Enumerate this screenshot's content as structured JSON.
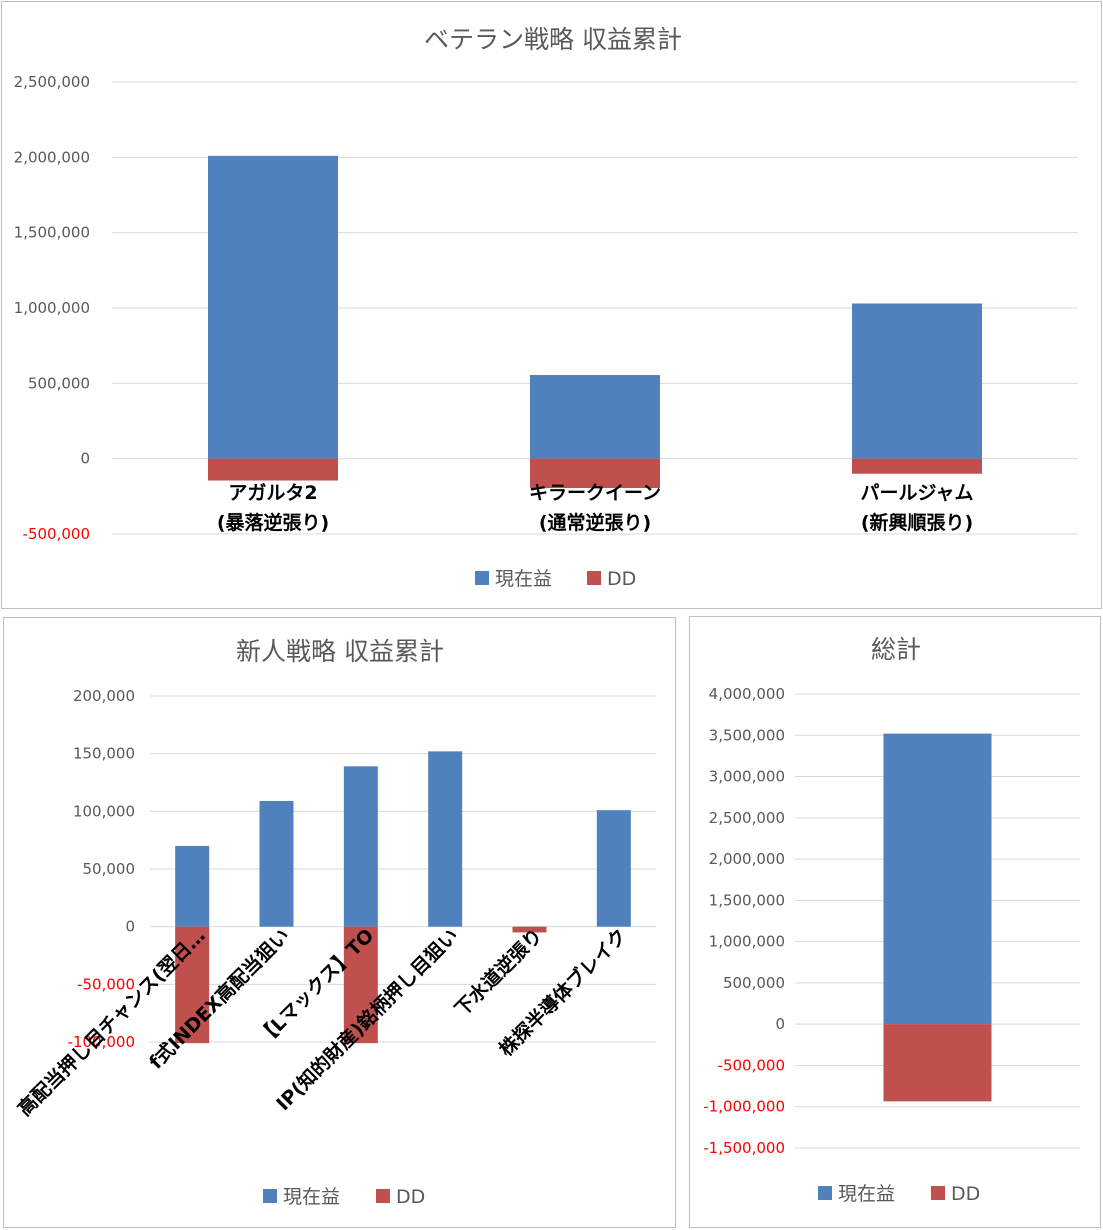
{
  "colors": {
    "gain": "#4f81bd",
    "dd": "#c0504d",
    "tick_positive": "#595959",
    "tick_negative": "#ff0000",
    "grid": "#d9d9d9"
  },
  "legend": {
    "gain": "現在益",
    "dd": "DD"
  },
  "chart_data": [
    {
      "type": "bar",
      "title": "ベテラン戦略 収益累計",
      "categories": [
        [
          "アガルタ2",
          "(暴落逆張り)"
        ],
        [
          "キラークイーン",
          "(通常逆張り)"
        ],
        [
          "パールジャム",
          "(新興順張り)"
        ]
      ],
      "ylim": [
        -500000,
        2500000
      ],
      "yticks": [
        -500000,
        0,
        500000,
        1000000,
        1500000,
        2000000,
        2500000
      ],
      "ytick_labels": [
        "-500,000",
        "0",
        "500,000",
        "1,000,000",
        "1,500,000",
        "2,000,000",
        "2,500,000"
      ],
      "series": [
        {
          "name": "現在益",
          "values": [
            2010000,
            555000,
            1030000
          ]
        },
        {
          "name": "DD",
          "values": [
            -145000,
            -195000,
            -100000
          ]
        }
      ],
      "grid": true,
      "legend_position": "bottom",
      "stacked": true
    },
    {
      "type": "bar",
      "title": "新人戦略 収益累計",
      "categories": [
        "高配当押し目チャンス(翌日…",
        "f式INDEX高配当狙い",
        "【Lマックス】TO",
        "IP(知的財産)銘柄押し目狙い",
        "下水道逆張り",
        "株探半導体ブレイク"
      ],
      "ylim": [
        -100000,
        200000
      ],
      "yticks": [
        -100000,
        -50000,
        0,
        50000,
        100000,
        150000,
        200000
      ],
      "ytick_labels": [
        "-100,000",
        "-50,000",
        "0",
        "50,000",
        "100,000",
        "150,000",
        "200,000"
      ],
      "series": [
        {
          "name": "現在益",
          "values": [
            70000,
            109000,
            139000,
            152000,
            0,
            101000
          ]
        },
        {
          "name": "DD",
          "values": [
            -101000,
            0,
            -101000,
            0,
            -5000,
            0
          ]
        }
      ],
      "grid": true,
      "legend_position": "bottom",
      "stacked": true
    },
    {
      "type": "bar",
      "title": "総計",
      "categories": [
        ""
      ],
      "ylim": [
        -1500000,
        4000000
      ],
      "yticks": [
        -1500000,
        -1000000,
        -500000,
        0,
        500000,
        1000000,
        1500000,
        2000000,
        2500000,
        3000000,
        3500000,
        4000000
      ],
      "ytick_labels": [
        "-1,500,000",
        "-1,000,000",
        "-500,000",
        "0",
        "500,000",
        "1,000,000",
        "1,500,000",
        "2,000,000",
        "2,500,000",
        "3,000,000",
        "3,500,000",
        "4,000,000"
      ],
      "series": [
        {
          "name": "現在益",
          "values": [
            3520000
          ]
        },
        {
          "name": "DD",
          "values": [
            -935000
          ]
        }
      ],
      "grid": true,
      "legend_position": "bottom",
      "stacked": true
    }
  ]
}
